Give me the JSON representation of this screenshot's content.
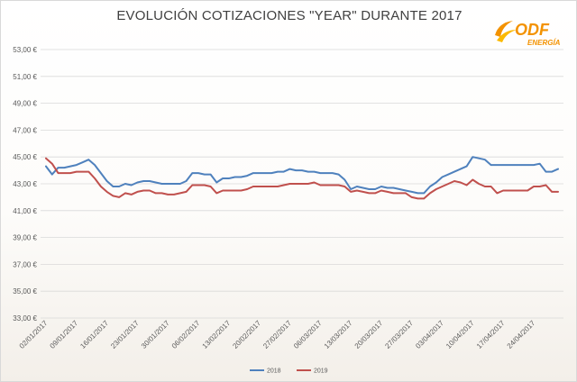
{
  "brand": {
    "name": "ODF",
    "sub": "ENERGÍA"
  },
  "chart_data": {
    "type": "line",
    "title": "EVOLUCIÓN COTIZACIONES \"YEAR\" DURANTE 2017",
    "xlabel": "",
    "ylabel": "",
    "ylim": [
      33,
      53
    ],
    "yticks": [
      "33,00 €",
      "35,00 €",
      "37,00 €",
      "39,00 €",
      "41,00 €",
      "43,00 €",
      "45,00 €",
      "47,00 €",
      "49,00 €",
      "51,00 €",
      "53,00 €"
    ],
    "grid": true,
    "legend_position": "bottom",
    "x_ticks": [
      "02/01/2017",
      "09/01/2017",
      "16/01/2017",
      "23/01/2017",
      "30/01/2017",
      "06/02/2017",
      "13/02/2017",
      "20/02/2017",
      "27/02/2017",
      "06/03/2017",
      "13/03/2017",
      "20/03/2017",
      "27/03/2017",
      "03/04/2017",
      "10/04/2017",
      "17/04/2017",
      "24/04/2017"
    ],
    "x": [
      "02/01/2017",
      "03/01/2017",
      "04/01/2017",
      "05/01/2017",
      "06/01/2017",
      "09/01/2017",
      "10/01/2017",
      "11/01/2017",
      "12/01/2017",
      "13/01/2017",
      "16/01/2017",
      "17/01/2017",
      "18/01/2017",
      "19/01/2017",
      "20/01/2017",
      "23/01/2017",
      "24/01/2017",
      "25/01/2017",
      "26/01/2017",
      "27/01/2017",
      "30/01/2017",
      "31/01/2017",
      "01/02/2017",
      "02/02/2017",
      "03/02/2017",
      "06/02/2017",
      "07/02/2017",
      "08/02/2017",
      "09/02/2017",
      "10/02/2017",
      "13/02/2017",
      "14/02/2017",
      "15/02/2017",
      "16/02/2017",
      "17/02/2017",
      "20/02/2017",
      "21/02/2017",
      "22/02/2017",
      "23/02/2017",
      "24/02/2017",
      "27/02/2017",
      "28/02/2017",
      "01/03/2017",
      "02/03/2017",
      "03/03/2017",
      "06/03/2017",
      "07/03/2017",
      "08/03/2017",
      "09/03/2017",
      "10/03/2017",
      "13/03/2017",
      "14/03/2017",
      "15/03/2017",
      "16/03/2017",
      "17/03/2017",
      "20/03/2017",
      "21/03/2017",
      "22/03/2017",
      "23/03/2017",
      "24/03/2017",
      "27/03/2017",
      "28/03/2017",
      "29/03/2017",
      "30/03/2017",
      "31/03/2017",
      "03/04/2017",
      "04/04/2017",
      "05/04/2017",
      "06/04/2017",
      "07/04/2017",
      "10/04/2017",
      "11/04/2017",
      "12/04/2017",
      "13/04/2017",
      "14/04/2017",
      "17/04/2017",
      "18/04/2017",
      "19/04/2017",
      "20/04/2017",
      "21/04/2017",
      "24/04/2017",
      "25/04/2017",
      "26/04/2017",
      "27/04/2017",
      "28/04/2017"
    ],
    "series": [
      {
        "name": "2018",
        "color": "#4f81bd",
        "values": [
          44.3,
          43.7,
          44.2,
          44.2,
          44.3,
          44.4,
          44.6,
          44.8,
          44.4,
          43.8,
          43.2,
          42.8,
          42.8,
          43.0,
          42.9,
          43.1,
          43.2,
          43.2,
          43.1,
          43.0,
          43.0,
          43.0,
          43.0,
          43.2,
          43.8,
          43.8,
          43.7,
          43.7,
          43.1,
          43.4,
          43.4,
          43.5,
          43.5,
          43.6,
          43.8,
          43.8,
          43.8,
          43.8,
          43.9,
          43.9,
          44.1,
          44.0,
          44.0,
          43.9,
          43.9,
          43.8,
          43.8,
          43.8,
          43.7,
          43.3,
          42.6,
          42.8,
          42.7,
          42.6,
          42.6,
          42.8,
          42.7,
          42.7,
          42.6,
          42.5,
          42.4,
          42.3,
          42.3,
          42.8,
          43.1,
          43.5,
          43.7,
          43.9,
          44.1,
          44.3,
          45.0,
          44.9,
          44.8,
          44.4,
          44.4,
          44.4,
          44.4,
          44.4,
          44.4,
          44.4,
          44.4,
          44.5,
          43.9,
          43.9,
          44.1
        ]
      },
      {
        "name": "2019",
        "color": "#c0504d",
        "values": [
          44.9,
          44.5,
          43.8,
          43.8,
          43.8,
          43.9,
          43.9,
          43.9,
          43.4,
          42.8,
          42.4,
          42.1,
          42.0,
          42.3,
          42.2,
          42.4,
          42.5,
          42.5,
          42.3,
          42.3,
          42.2,
          42.2,
          42.3,
          42.4,
          42.9,
          42.9,
          42.9,
          42.8,
          42.3,
          42.5,
          42.5,
          42.5,
          42.5,
          42.6,
          42.8,
          42.8,
          42.8,
          42.8,
          42.8,
          42.9,
          43.0,
          43.0,
          43.0,
          43.0,
          43.1,
          42.9,
          42.9,
          42.9,
          42.9,
          42.8,
          42.4,
          42.5,
          42.4,
          42.3,
          42.3,
          42.5,
          42.4,
          42.3,
          42.3,
          42.3,
          42.0,
          41.9,
          41.9,
          42.3,
          42.6,
          42.8,
          43.0,
          43.2,
          43.1,
          42.9,
          43.3,
          43.0,
          42.8,
          42.8,
          42.3,
          42.5,
          42.5,
          42.5,
          42.5,
          42.5,
          42.8,
          42.8,
          42.9,
          42.4,
          42.4
        ]
      }
    ]
  }
}
